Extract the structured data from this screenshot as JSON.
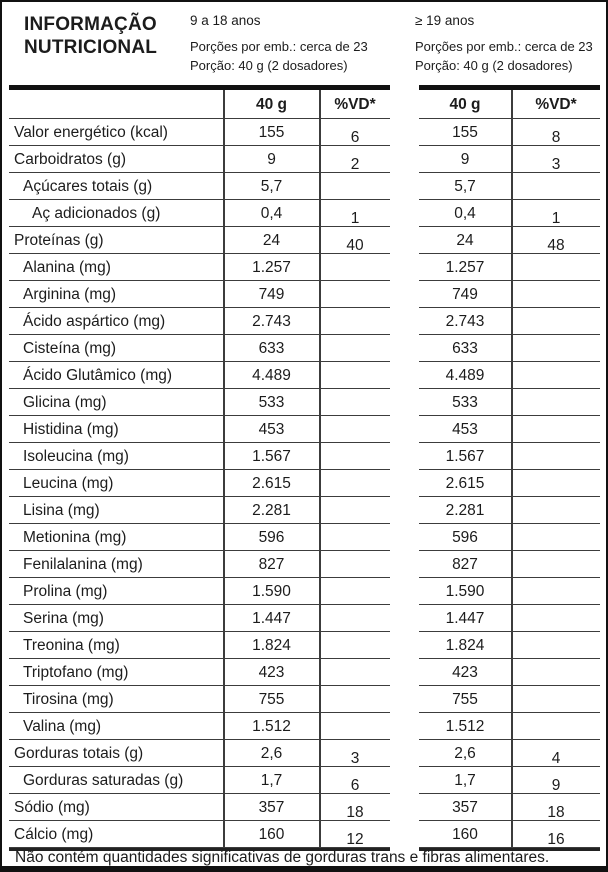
{
  "title": "INFORMAÇÃO\nNUTRICIONAL",
  "groups": [
    {
      "age": "9 a 18 anos",
      "servings": "Porções por emb.: cerca de 23",
      "portion": "Porção: 40 g (2 dosadores)"
    },
    {
      "age": "≥ 19 anos",
      "servings": "Porções por emb.: cerca de 23",
      "portion": "Porção: 40 g (2 dosadores)"
    }
  ],
  "columns": {
    "amount": "40 g",
    "vd": "%VD*"
  },
  "rows": [
    {
      "label": "Valor energético (kcal)",
      "indent": 0,
      "g1": {
        "amount": "155",
        "vd": "6"
      },
      "g2": {
        "amount": "155",
        "vd": "8"
      }
    },
    {
      "label": "Carboidratos (g)",
      "indent": 0,
      "g1": {
        "amount": "9",
        "vd": "2"
      },
      "g2": {
        "amount": "9",
        "vd": "3"
      }
    },
    {
      "label": "Açúcares totais (g)",
      "indent": 1,
      "g1": {
        "amount": "5,7",
        "vd": ""
      },
      "g2": {
        "amount": "5,7",
        "vd": ""
      }
    },
    {
      "label": "Aç adicionados (g)",
      "indent": 2,
      "g1": {
        "amount": "0,4",
        "vd": "1"
      },
      "g2": {
        "amount": "0,4",
        "vd": "1"
      }
    },
    {
      "label": "Proteínas (g)",
      "indent": 0,
      "g1": {
        "amount": "24",
        "vd": "40"
      },
      "g2": {
        "amount": "24",
        "vd": "48"
      }
    },
    {
      "label": "Alanina (mg)",
      "indent": 1,
      "g1": {
        "amount": "1.257",
        "vd": ""
      },
      "g2": {
        "amount": "1.257",
        "vd": ""
      }
    },
    {
      "label": "Arginina (mg)",
      "indent": 1,
      "g1": {
        "amount": "749",
        "vd": ""
      },
      "g2": {
        "amount": "749",
        "vd": ""
      }
    },
    {
      "label": "Ácido aspártico (mg)",
      "indent": 1,
      "g1": {
        "amount": "2.743",
        "vd": ""
      },
      "g2": {
        "amount": "2.743",
        "vd": ""
      }
    },
    {
      "label": "Cisteína (mg)",
      "indent": 1,
      "g1": {
        "amount": "633",
        "vd": ""
      },
      "g2": {
        "amount": "633",
        "vd": ""
      }
    },
    {
      "label": "Ácido Glutâmico (mg)",
      "indent": 1,
      "g1": {
        "amount": "4.489",
        "vd": ""
      },
      "g2": {
        "amount": "4.489",
        "vd": ""
      }
    },
    {
      "label": "Glicina (mg)",
      "indent": 1,
      "g1": {
        "amount": "533",
        "vd": ""
      },
      "g2": {
        "amount": "533",
        "vd": ""
      }
    },
    {
      "label": "Histidina (mg)",
      "indent": 1,
      "g1": {
        "amount": "453",
        "vd": ""
      },
      "g2": {
        "amount": "453",
        "vd": ""
      }
    },
    {
      "label": "Isoleucina (mg)",
      "indent": 1,
      "g1": {
        "amount": "1.567",
        "vd": ""
      },
      "g2": {
        "amount": "1.567",
        "vd": ""
      }
    },
    {
      "label": "Leucina (mg)",
      "indent": 1,
      "g1": {
        "amount": "2.615",
        "vd": ""
      },
      "g2": {
        "amount": "2.615",
        "vd": ""
      }
    },
    {
      "label": "Lisina (mg)",
      "indent": 1,
      "g1": {
        "amount": "2.281",
        "vd": ""
      },
      "g2": {
        "amount": "2.281",
        "vd": ""
      }
    },
    {
      "label": "Metionina (mg)",
      "indent": 1,
      "g1": {
        "amount": "596",
        "vd": ""
      },
      "g2": {
        "amount": "596",
        "vd": ""
      }
    },
    {
      "label": "Fenilalanina (mg)",
      "indent": 1,
      "g1": {
        "amount": "827",
        "vd": ""
      },
      "g2": {
        "amount": "827",
        "vd": ""
      }
    },
    {
      "label": "Prolina (mg)",
      "indent": 1,
      "g1": {
        "amount": "1.590",
        "vd": ""
      },
      "g2": {
        "amount": "1.590",
        "vd": ""
      }
    },
    {
      "label": "Serina (mg)",
      "indent": 1,
      "g1": {
        "amount": "1.447",
        "vd": ""
      },
      "g2": {
        "amount": "1.447",
        "vd": ""
      }
    },
    {
      "label": "Treonina (mg)",
      "indent": 1,
      "g1": {
        "amount": "1.824",
        "vd": ""
      },
      "g2": {
        "amount": "1.824",
        "vd": ""
      }
    },
    {
      "label": "Triptofano (mg)",
      "indent": 1,
      "g1": {
        "amount": "423",
        "vd": ""
      },
      "g2": {
        "amount": "423",
        "vd": ""
      }
    },
    {
      "label": "Tirosina (mg)",
      "indent": 1,
      "g1": {
        "amount": "755",
        "vd": ""
      },
      "g2": {
        "amount": "755",
        "vd": ""
      }
    },
    {
      "label": "Valina (mg)",
      "indent": 1,
      "g1": {
        "amount": "1.512",
        "vd": ""
      },
      "g2": {
        "amount": "1.512",
        "vd": ""
      }
    },
    {
      "label": "Gorduras totais (g)",
      "indent": 0,
      "g1": {
        "amount": "2,6",
        "vd": "3"
      },
      "g2": {
        "amount": "2,6",
        "vd": "4"
      }
    },
    {
      "label": "Gorduras saturadas (g)",
      "indent": 1,
      "g1": {
        "amount": "1,7",
        "vd": "6"
      },
      "g2": {
        "amount": "1,7",
        "vd": "9"
      }
    },
    {
      "label": "Sódio (mg)",
      "indent": 0,
      "g1": {
        "amount": "357",
        "vd": "18"
      },
      "g2": {
        "amount": "357",
        "vd": "18"
      }
    },
    {
      "label": "Cálcio (mg)",
      "indent": 0,
      "g1": {
        "amount": "160",
        "vd": "12"
      },
      "g2": {
        "amount": "160",
        "vd": "16"
      }
    }
  ],
  "footer": "Não contém quantidades significativas de gorduras trans e fibras alimentares."
}
